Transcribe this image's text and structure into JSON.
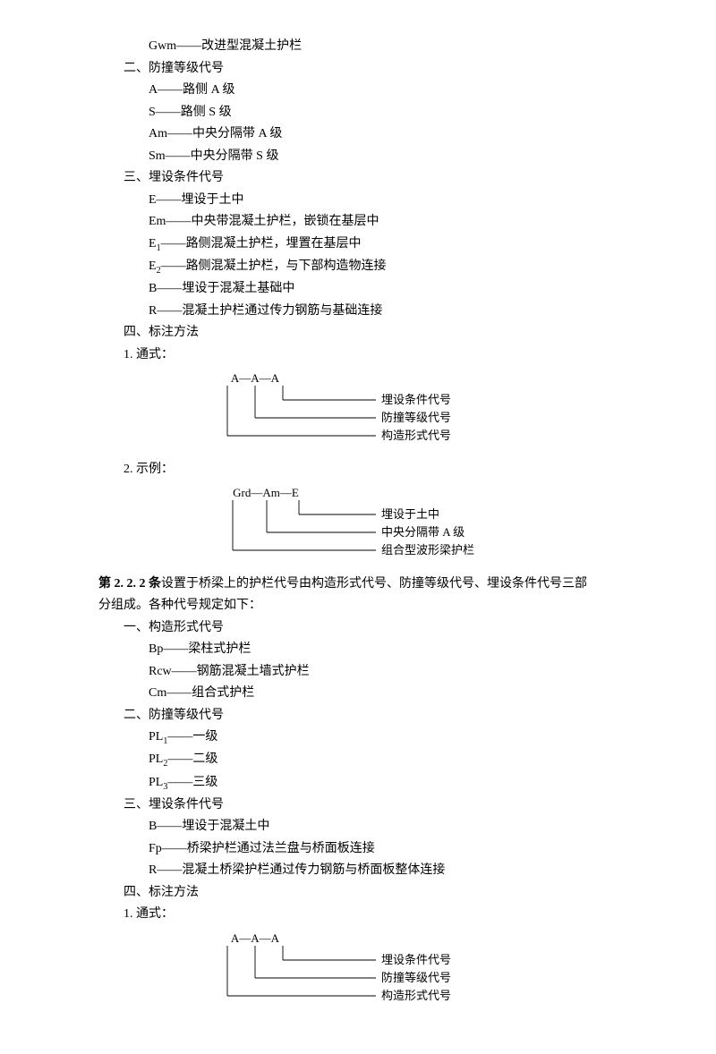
{
  "line_gwm": "Gwm——改进型混凝土护栏",
  "section2_title": "二、防撞等级代号",
  "s2": {
    "l1": "A——路侧 A 级",
    "l2": "S——路侧 S 级",
    "l3": "Am——中央分隔带 A 级",
    "l4": "Sm——中央分隔带 S 级"
  },
  "section3_title": "三、埋设条件代号",
  "s3": {
    "l1": "E——埋设于土中",
    "l2": "Em——中央带混凝土护栏，嵌锁在基层中",
    "l3a": "E",
    "l3b": "——路侧混凝土护栏，埋置在基层中",
    "l4a": "E",
    "l4b": "——路侧混凝土护栏，与下部构造物连接",
    "l5": "B——埋设于混凝土基础中",
    "l6": "R——混凝土护栏通过传力钢筋与基础连接"
  },
  "section4_title": "四、标注方法",
  "s4_1": "1. 通式：",
  "diagram1": {
    "code": "A—A—A",
    "label_top": "埋设条件代号",
    "label_mid": "防撞等级代号",
    "label_bot": "构造形式代号",
    "xA1": 144,
    "xA2": 175,
    "xA3": 206,
    "xLabel": 310,
    "yCode": 12,
    "yTop": 32,
    "yMid": 52,
    "yBot": 72,
    "color": "#000",
    "stroke": 0.9
  },
  "s4_2": "2. 示例：",
  "diagram2": {
    "code": "Grd—Am—E",
    "label_top": "埋设于土中",
    "label_mid": "中央分隔带 A 级",
    "label_bot": "组合型波形梁护栏",
    "xA1": 150,
    "xA2": 188,
    "xA3": 224,
    "xLabel": 310,
    "yCode": 12,
    "yTop": 32,
    "yMid": 52,
    "yBot": 72,
    "color": "#000",
    "stroke": 0.9
  },
  "article_bold": "第 2. 2. 2 条",
  "article_rest1": "设置于桥梁上的护栏代号由构造形式代号、防撞等级代号、埋设条件代号三部",
  "article_rest2": "分组成。各种代号规定如下：",
  "b1_title": "一、构造形式代号",
  "b1": {
    "l1": "Bp——梁柱式护栏",
    "l2": "Rcw——钢筋混凝土墙式护栏",
    "l3": "Cm——组合式护栏"
  },
  "b2_title": "二、防撞等级代号",
  "b2": {
    "l1a": "PL",
    "l1b": "——一级",
    "l2a": "PL",
    "l2b": "——二级",
    "l3a": "PL",
    "l3b": "——三级"
  },
  "b3_title": "三、埋设条件代号",
  "b3": {
    "l1": "B——埋设于混凝土中",
    "l2": "Fp——桥梁护栏通过法兰盘与桥面板连接",
    "l3": "R——混凝土桥梁护栏通过传力钢筋与桥面板整体连接"
  },
  "b4_title": "四、标注方法",
  "b4_1": "1. 通式：",
  "diagram3": {
    "code": "A—A—A",
    "label_top": "埋设条件代号",
    "label_mid": "防撞等级代号",
    "label_bot": "构造形式代号",
    "xA1": 144,
    "xA2": 175,
    "xA3": 206,
    "xLabel": 310,
    "yCode": 12,
    "yTop": 32,
    "yMid": 52,
    "yBot": 72,
    "color": "#000",
    "stroke": 0.9
  }
}
